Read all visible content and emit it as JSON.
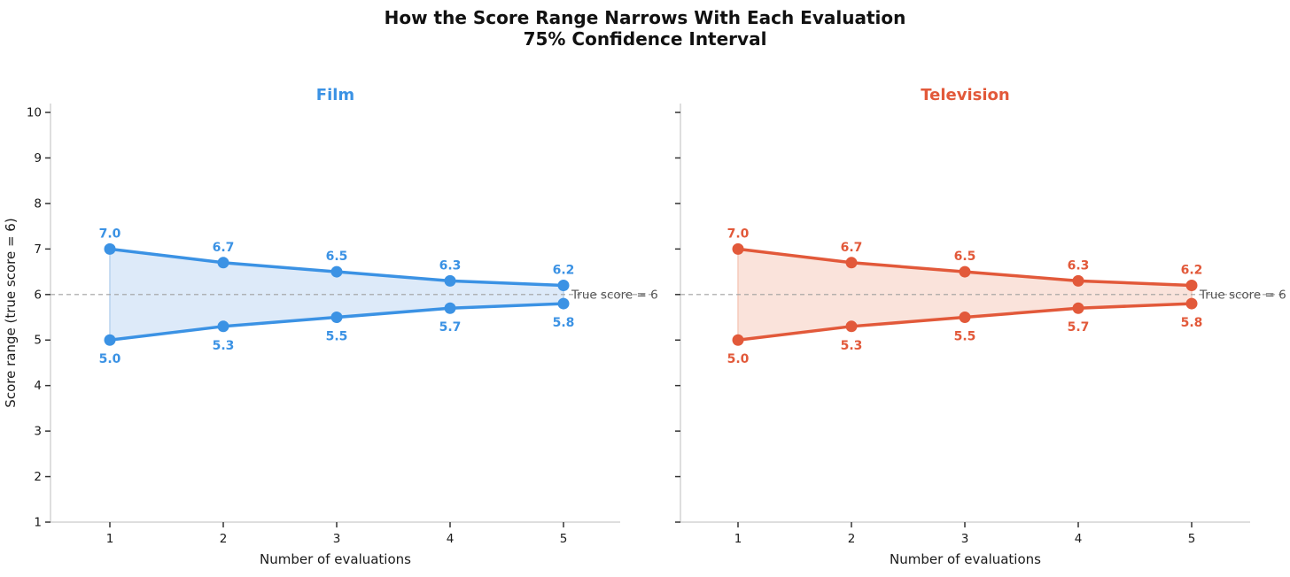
{
  "figure_title": {
    "line1": "How the Score Range Narrows With Each Evaluation",
    "line2": "75% Confidence Interval"
  },
  "colors": {
    "film": "#3b92e4",
    "film_fill": "#ddeaf9",
    "film_fill_edge": "#b9d3ef",
    "television": "#e2593a",
    "television_fill": "#fae3db",
    "television_fill_edge": "#f6c9ba",
    "reference_line": "#a0a0a0",
    "reference_text": "#555555",
    "axis_spine": "#c9c9c9",
    "tick_mark": "#333333",
    "tick_label": "#1a1a1a",
    "title_text": "#111111"
  },
  "chart_data": [
    {
      "type": "line",
      "title": "Film",
      "color": "#3b92e4",
      "fill_color": "#ddeaf9",
      "fill_edge_color": "#b9d3ef",
      "x": [
        1,
        2,
        3,
        4,
        5
      ],
      "series": [
        {
          "name": "upper bound",
          "values": [
            7.0,
            6.7,
            6.5,
            6.3,
            6.2
          ],
          "labels": [
            "7.0",
            "6.7",
            "6.5",
            "6.3",
            "6.2"
          ]
        },
        {
          "name": "lower bound",
          "values": [
            5.0,
            5.3,
            5.5,
            5.7,
            5.8
          ],
          "labels": [
            "5.0",
            "5.3",
            "5.5",
            "5.7",
            "5.8"
          ]
        }
      ],
      "reference_line": {
        "y": 6,
        "label": "True score = 6"
      },
      "xlabel": "Number of evaluations",
      "ylabel": "Score range (true score = 6)",
      "xticks": [
        1,
        2,
        3,
        4,
        5
      ],
      "yticks": [
        1,
        2,
        3,
        4,
        5,
        6,
        7,
        8,
        9,
        10
      ],
      "ylim": [
        1,
        10
      ],
      "show_y_tick_labels": true,
      "show_y_axis_label": true,
      "grid": false,
      "legend": "none"
    },
    {
      "type": "line",
      "title": "Television",
      "color": "#e2593a",
      "fill_color": "#fae3db",
      "fill_edge_color": "#f6c9ba",
      "x": [
        1,
        2,
        3,
        4,
        5
      ],
      "series": [
        {
          "name": "upper bound",
          "values": [
            7.0,
            6.7,
            6.5,
            6.3,
            6.2
          ],
          "labels": [
            "7.0",
            "6.7",
            "6.5",
            "6.3",
            "6.2"
          ]
        },
        {
          "name": "lower bound",
          "values": [
            5.0,
            5.3,
            5.5,
            5.7,
            5.8
          ],
          "labels": [
            "5.0",
            "5.3",
            "5.5",
            "5.7",
            "5.8"
          ]
        }
      ],
      "reference_line": {
        "y": 6,
        "label": "True score = 6"
      },
      "xlabel": "Number of evaluations",
      "ylabel": "",
      "xticks": [
        1,
        2,
        3,
        4,
        5
      ],
      "yticks": [
        1,
        2,
        3,
        4,
        5,
        6,
        7,
        8,
        9,
        10
      ],
      "ylim": [
        1,
        10
      ],
      "show_y_tick_labels": false,
      "show_y_axis_label": false,
      "grid": false,
      "legend": "none"
    }
  ]
}
